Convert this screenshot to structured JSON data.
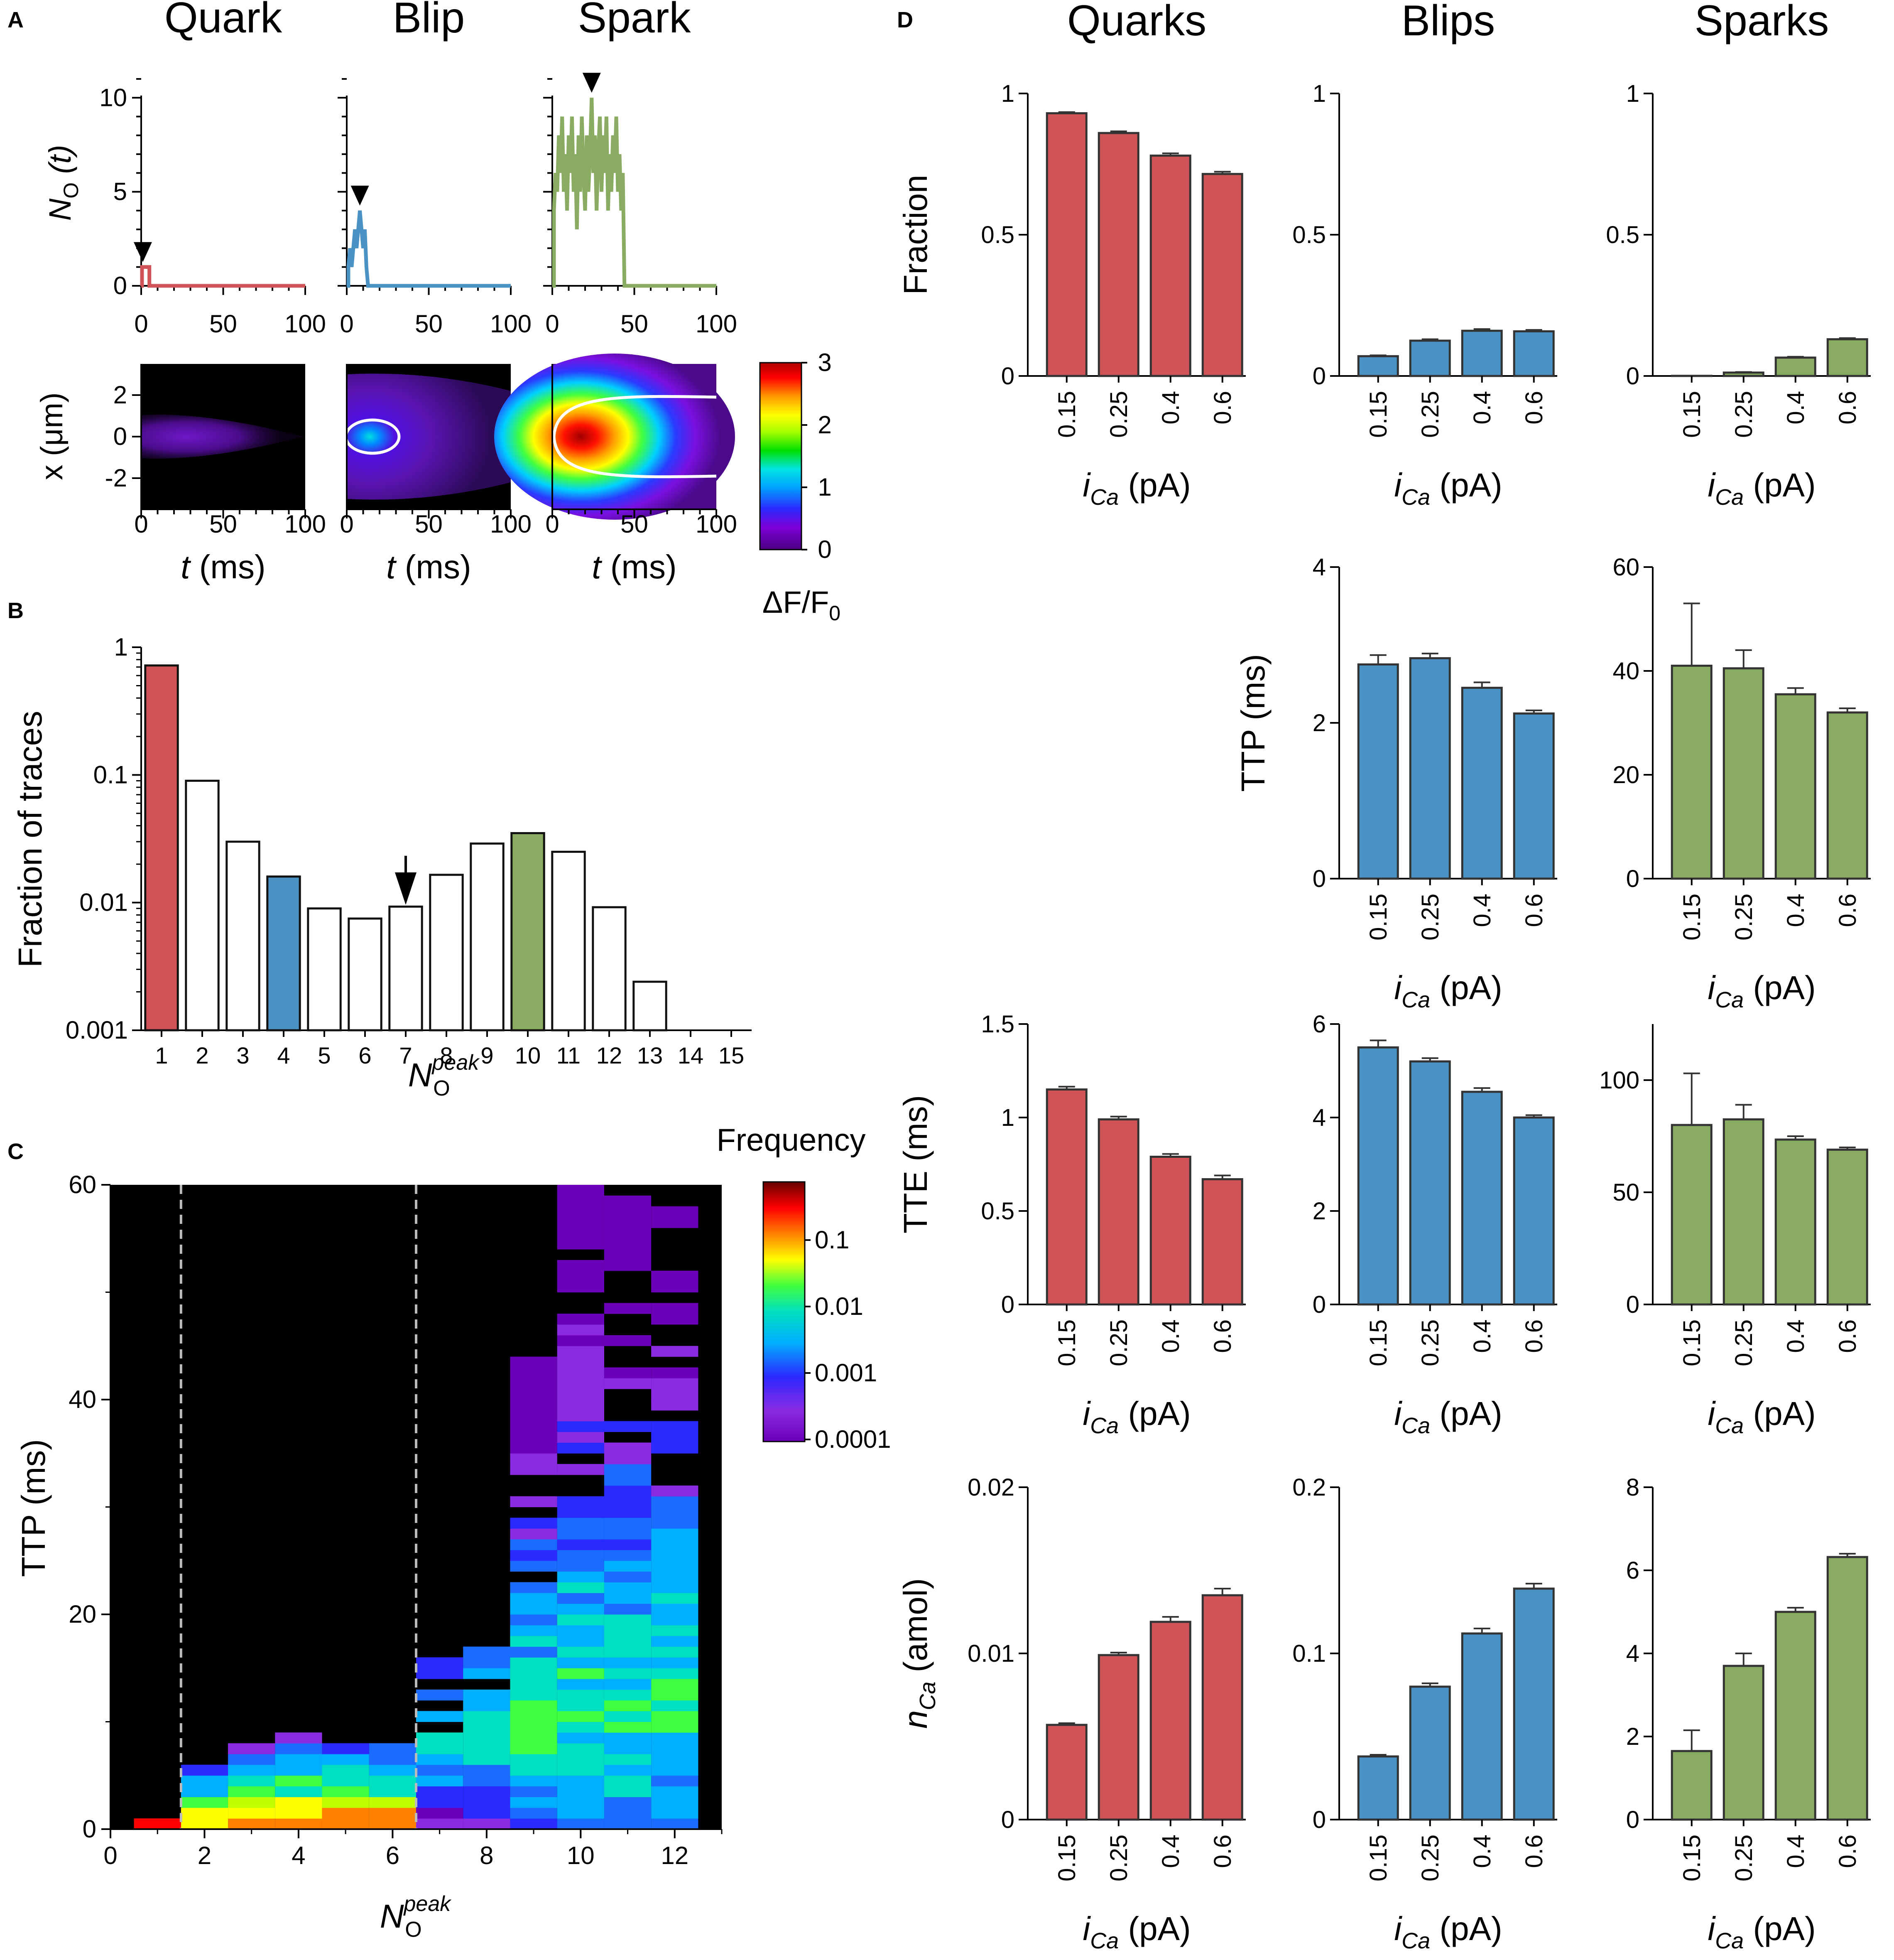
{
  "panel_letters": {
    "a": "A",
    "b": "B",
    "c": "C",
    "d": "D"
  },
  "colors": {
    "quark": "#d05457",
    "blip": "#4a92c4",
    "spark": "#8aab62",
    "open_trace": "#ffffff"
  },
  "chart_data": [
    {
      "id": "A_traces",
      "type": "line",
      "titles": [
        "Quark",
        "Blip",
        "Spark"
      ],
      "ylabel": "N_O (t)",
      "ylabel_main": "N",
      "ylabel_sub": "O",
      "ylabel_rest": " (t)",
      "ylim": [
        0,
        11
      ],
      "yticks": [
        "0",
        "5",
        "10"
      ],
      "xticks": [
        "0",
        "50",
        "100"
      ],
      "xlim": [
        0,
        100
      ],
      "series": [
        {
          "name": "Quark",
          "color": "quark",
          "peak_time": 1,
          "points": [
            [
              0,
              0
            ],
            [
              0.5,
              0
            ],
            [
              0.5,
              1
            ],
            [
              5,
              1
            ],
            [
              5,
              0
            ],
            [
              100,
              0
            ]
          ]
        },
        {
          "name": "Blip",
          "color": "blip",
          "peak_time": 8,
          "points": [
            [
              0,
              0
            ],
            [
              1,
              0
            ],
            [
              1,
              1
            ],
            [
              2,
              2
            ],
            [
              3,
              1
            ],
            [
              4,
              2
            ],
            [
              5,
              3
            ],
            [
              6,
              2
            ],
            [
              7,
              3
            ],
            [
              8,
              4
            ],
            [
              9,
              3
            ],
            [
              10,
              2
            ],
            [
              11,
              3
            ],
            [
              12,
              1
            ],
            [
              13,
              0
            ],
            [
              100,
              0
            ]
          ]
        },
        {
          "name": "Spark",
          "color": "spark",
          "peak_time": 24,
          "points": [
            [
              0,
              0
            ],
            [
              1,
              0
            ],
            [
              1,
              4
            ],
            [
              2,
              6
            ],
            [
              3,
              5
            ],
            [
              4,
              8
            ],
            [
              5,
              6
            ],
            [
              6,
              9
            ],
            [
              7,
              5
            ],
            [
              8,
              7
            ],
            [
              9,
              4
            ],
            [
              10,
              8
            ],
            [
              11,
              6
            ],
            [
              12,
              9
            ],
            [
              13,
              5
            ],
            [
              14,
              7
            ],
            [
              15,
              3
            ],
            [
              16,
              8
            ],
            [
              17,
              5
            ],
            [
              18,
              9
            ],
            [
              19,
              6
            ],
            [
              20,
              4
            ],
            [
              21,
              8
            ],
            [
              22,
              5
            ],
            [
              23,
              7
            ],
            [
              24,
              10
            ],
            [
              25,
              6
            ],
            [
              26,
              8
            ],
            [
              27,
              4
            ],
            [
              28,
              7
            ],
            [
              29,
              9
            ],
            [
              30,
              5
            ],
            [
              31,
              8
            ],
            [
              32,
              6
            ],
            [
              33,
              9
            ],
            [
              34,
              4
            ],
            [
              35,
              7
            ],
            [
              36,
              5
            ],
            [
              37,
              8
            ],
            [
              38,
              6
            ],
            [
              39,
              9
            ],
            [
              40,
              5
            ],
            [
              41,
              7
            ],
            [
              42,
              4
            ],
            [
              43,
              6
            ],
            [
              44,
              0
            ],
            [
              100,
              0
            ]
          ]
        }
      ]
    },
    {
      "id": "A_linescans",
      "type": "heatmap",
      "ylabel": "x (μm)",
      "xlabel": "t (ms)",
      "xlabel_t": "t",
      "xlabel_rest": " (ms)",
      "yticks": [
        "2",
        "0",
        "-2"
      ],
      "xticks": [
        "0",
        "50",
        "100"
      ],
      "intensity_peaks": [
        0.35,
        1.2,
        2.8
      ],
      "colorbar": {
        "ticks": [
          "0",
          "1",
          "2",
          "3"
        ],
        "label": "ΔF/F",
        "label_main": "ΔF/F",
        "label_sub": "0"
      }
    },
    {
      "id": "B",
      "type": "bar",
      "ylabel": "Fraction of traces",
      "xlabel_main": "N",
      "xlabel_sub": "O",
      "xlabel_sup": "peak",
      "yscale": "log",
      "ylim": [
        0.001,
        1
      ],
      "yticks": [
        "1",
        "0.1",
        "0.01",
        "0.001"
      ],
      "categories": [
        "1",
        "2",
        "3",
        "4",
        "5",
        "6",
        "7",
        "8",
        "9",
        "10",
        "11",
        "12",
        "13",
        "14",
        "15"
      ],
      "values": [
        0.72,
        0.09,
        0.03,
        0.016,
        0.009,
        0.0075,
        0.0093,
        0.0165,
        0.029,
        0.035,
        0.025,
        0.0092,
        0.0024,
        0,
        0
      ],
      "highlight": {
        "1": "quark",
        "4": "blip",
        "10": "spark"
      },
      "arrow_at": 6.5
    },
    {
      "id": "C",
      "type": "heatmap",
      "ylabel": "TTP (ms)",
      "xlabel_main": "N",
      "xlabel_sub": "O",
      "xlabel_sup": "peak",
      "xlim": [
        0,
        13
      ],
      "ylim": [
        0,
        60
      ],
      "xticks": [
        "0",
        "2",
        "4",
        "6",
        "8",
        "10",
        "12"
      ],
      "yticks": [
        "0",
        "20",
        "40",
        "60"
      ],
      "dashed_x": [
        1.5,
        6.5
      ],
      "max_ttp": [
        1,
        5.5,
        7.5,
        8.5,
        8,
        8,
        16,
        20,
        44,
        60,
        59,
        58
      ],
      "colorbar": {
        "title": "Frequency",
        "ticks": [
          "0.1",
          "0.01",
          "0.001",
          "0.0001"
        ]
      }
    },
    {
      "id": "D",
      "type": "bar",
      "column_titles": [
        "Quarks",
        "Blips",
        "Sparks"
      ],
      "categories": [
        "0.15",
        "0.25",
        "0.4",
        "0.6"
      ],
      "xlabel": "i_Ca (pA)",
      "xlabel_i": "i",
      "xlabel_sub": "Ca",
      "xlabel_rest": " (pA)",
      "rows": [
        {
          "ylabel": "Fraction",
          "panels": [
            {
              "col": "quark",
              "ylim": [
                0,
                1
              ],
              "yticks": [
                "0",
                "0.5",
                "1"
              ],
              "values": [
                0.93,
                0.86,
                0.78,
                0.715
              ],
              "errors": [
                0.004,
                0.006,
                0.008,
                0.008
              ]
            },
            {
              "col": "blip",
              "ylim": [
                0,
                1
              ],
              "yticks": [
                "0",
                "0.5",
                "1"
              ],
              "values": [
                0.07,
                0.125,
                0.16,
                0.158
              ],
              "errors": [
                0.003,
                0.005,
                0.006,
                0.005
              ]
            },
            {
              "col": "spark",
              "ylim": [
                0,
                1
              ],
              "yticks": [
                "0",
                "0.5",
                "1"
              ],
              "values": [
                0.0005,
                0.012,
                0.065,
                0.13
              ],
              "errors": [
                0.0003,
                0.002,
                0.003,
                0.004
              ]
            }
          ]
        },
        {
          "ylabel": "TTP (ms)",
          "panels": [
            null,
            {
              "col": "blip",
              "ylim": [
                0,
                4
              ],
              "yticks": [
                "0",
                "2",
                "4"
              ],
              "values": [
                2.75,
                2.83,
                2.45,
                2.12
              ],
              "errors": [
                0.12,
                0.06,
                0.07,
                0.04
              ]
            },
            {
              "col": "spark",
              "ylim": [
                0,
                60
              ],
              "yticks": [
                "0",
                "20",
                "40",
                "60"
              ],
              "values": [
                41,
                40.5,
                35.5,
                32
              ],
              "errors": [
                12,
                3.5,
                1.2,
                0.8
              ]
            }
          ]
        },
        {
          "ylabel": "TTE (ms)",
          "panels": [
            {
              "col": "quark",
              "ylim": [
                0,
                1.5
              ],
              "yticks": [
                "0",
                "0.5",
                "1",
                "1.5"
              ],
              "values": [
                1.15,
                0.99,
                0.79,
                0.67
              ],
              "errors": [
                0.015,
                0.015,
                0.015,
                0.02
              ]
            },
            {
              "col": "blip",
              "ylim": [
                0,
                6
              ],
              "yticks": [
                "0",
                "2",
                "4",
                "6"
              ],
              "values": [
                5.5,
                5.2,
                4.55,
                4.0
              ],
              "errors": [
                0.15,
                0.07,
                0.08,
                0.05
              ]
            },
            {
              "col": "spark",
              "ylim": [
                0,
                125
              ],
              "yticks": [
                "0",
                "50",
                "100"
              ],
              "values": [
                80,
                82.5,
                73.5,
                69
              ],
              "errors": [
                23,
                6.5,
                1.5,
                1
              ]
            }
          ]
        },
        {
          "ylabel": "n_Ca (amol)",
          "ylabel_n": "n",
          "ylabel_sub": "Ca",
          "ylabel_rest": " (amol)",
          "panels": [
            {
              "col": "quark",
              "ylim": [
                0,
                0.02
              ],
              "yticks": [
                "0",
                "0.01",
                "0.02"
              ],
              "values": [
                0.0057,
                0.0099,
                0.0119,
                0.0135
              ],
              "errors": [
                0.0001,
                0.00015,
                0.0003,
                0.0004
              ]
            },
            {
              "col": "blip",
              "ylim": [
                0,
                0.2
              ],
              "yticks": [
                "0",
                "0.1",
                "0.2"
              ],
              "values": [
                0.038,
                0.08,
                0.112,
                0.139
              ],
              "errors": [
                0.001,
                0.002,
                0.003,
                0.003
              ]
            },
            {
              "col": "spark",
              "ylim": [
                0,
                8
              ],
              "yticks": [
                "0",
                "2",
                "4",
                "6",
                "8"
              ],
              "values": [
                1.65,
                3.7,
                5.0,
                6.32
              ],
              "errors": [
                0.5,
                0.3,
                0.1,
                0.08
              ]
            }
          ]
        }
      ]
    }
  ]
}
